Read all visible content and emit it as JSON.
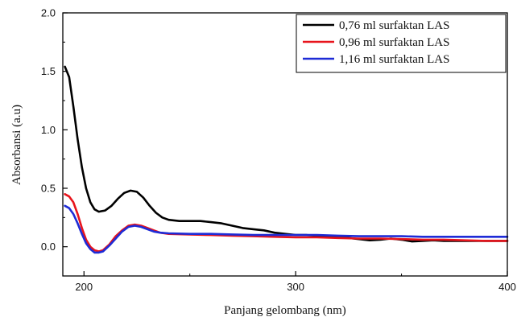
{
  "chart_data": {
    "type": "line",
    "xlabel": "Panjang gelombang (nm)",
    "ylabel": "Absorbansi (a.u)",
    "xlim": [
      190,
      400
    ],
    "ylim": [
      -0.25,
      2.0
    ],
    "x_ticks": [
      "200",
      "300",
      "400"
    ],
    "y_ticks": [
      "0.0",
      "0.5",
      "1.0",
      "1.5",
      "2.0"
    ],
    "grid": false,
    "legend_position": "top-right",
    "series": [
      {
        "name": "0,76 ml surfaktan LAS",
        "color": "#000000",
        "points": [
          [
            191,
            1.54
          ],
          [
            193,
            1.45
          ],
          [
            195,
            1.2
          ],
          [
            197,
            0.92
          ],
          [
            199,
            0.68
          ],
          [
            201,
            0.5
          ],
          [
            203,
            0.38
          ],
          [
            205,
            0.32
          ],
          [
            207,
            0.3
          ],
          [
            210,
            0.31
          ],
          [
            213,
            0.35
          ],
          [
            216,
            0.41
          ],
          [
            219,
            0.46
          ],
          [
            222,
            0.48
          ],
          [
            225,
            0.47
          ],
          [
            228,
            0.42
          ],
          [
            231,
            0.35
          ],
          [
            234,
            0.29
          ],
          [
            237,
            0.25
          ],
          [
            240,
            0.23
          ],
          [
            245,
            0.22
          ],
          [
            250,
            0.22
          ],
          [
            255,
            0.22
          ],
          [
            260,
            0.21
          ],
          [
            265,
            0.2
          ],
          [
            270,
            0.18
          ],
          [
            275,
            0.16
          ],
          [
            280,
            0.15
          ],
          [
            285,
            0.14
          ],
          [
            290,
            0.12
          ],
          [
            295,
            0.11
          ],
          [
            300,
            0.1
          ],
          [
            305,
            0.1
          ],
          [
            310,
            0.095
          ],
          [
            320,
            0.085
          ],
          [
            330,
            0.065
          ],
          [
            335,
            0.055
          ],
          [
            340,
            0.06
          ],
          [
            345,
            0.07
          ],
          [
            350,
            0.06
          ],
          [
            355,
            0.045
          ],
          [
            360,
            0.05
          ],
          [
            365,
            0.055
          ],
          [
            370,
            0.05
          ],
          [
            380,
            0.05
          ],
          [
            390,
            0.05
          ],
          [
            400,
            0.05
          ]
        ]
      },
      {
        "name": "0,96 ml surfaktan LAS",
        "color": "#e8141c",
        "points": [
          [
            191,
            0.45
          ],
          [
            193,
            0.43
          ],
          [
            195,
            0.38
          ],
          [
            197,
            0.28
          ],
          [
            199,
            0.16
          ],
          [
            201,
            0.06
          ],
          [
            203,
            0.0
          ],
          [
            205,
            -0.03
          ],
          [
            207,
            -0.04
          ],
          [
            209,
            -0.03
          ],
          [
            212,
            0.02
          ],
          [
            215,
            0.09
          ],
          [
            218,
            0.14
          ],
          [
            221,
            0.18
          ],
          [
            224,
            0.19
          ],
          [
            227,
            0.18
          ],
          [
            230,
            0.16
          ],
          [
            233,
            0.14
          ],
          [
            236,
            0.12
          ],
          [
            240,
            0.11
          ],
          [
            250,
            0.105
          ],
          [
            260,
            0.1
          ],
          [
            270,
            0.095
          ],
          [
            280,
            0.09
          ],
          [
            290,
            0.085
          ],
          [
            300,
            0.08
          ],
          [
            310,
            0.08
          ],
          [
            320,
            0.075
          ],
          [
            330,
            0.07
          ],
          [
            340,
            0.07
          ],
          [
            350,
            0.065
          ],
          [
            360,
            0.06
          ],
          [
            370,
            0.06
          ],
          [
            380,
            0.055
          ],
          [
            390,
            0.05
          ],
          [
            400,
            0.05
          ]
        ]
      },
      {
        "name": "1,16 ml surfaktan LAS",
        "color": "#1e2bd6",
        "points": [
          [
            191,
            0.35
          ],
          [
            193,
            0.33
          ],
          [
            195,
            0.28
          ],
          [
            197,
            0.2
          ],
          [
            199,
            0.11
          ],
          [
            201,
            0.03
          ],
          [
            203,
            -0.02
          ],
          [
            205,
            -0.05
          ],
          [
            207,
            -0.05
          ],
          [
            209,
            -0.04
          ],
          [
            212,
            0.01
          ],
          [
            215,
            0.07
          ],
          [
            218,
            0.13
          ],
          [
            221,
            0.17
          ],
          [
            224,
            0.18
          ],
          [
            227,
            0.17
          ],
          [
            230,
            0.15
          ],
          [
            233,
            0.13
          ],
          [
            236,
            0.12
          ],
          [
            240,
            0.115
          ],
          [
            250,
            0.11
          ],
          [
            260,
            0.11
          ],
          [
            270,
            0.105
          ],
          [
            280,
            0.1
          ],
          [
            290,
            0.1
          ],
          [
            300,
            0.1
          ],
          [
            310,
            0.1
          ],
          [
            320,
            0.095
          ],
          [
            330,
            0.09
          ],
          [
            340,
            0.09
          ],
          [
            350,
            0.09
          ],
          [
            360,
            0.085
          ],
          [
            370,
            0.085
          ],
          [
            380,
            0.085
          ],
          [
            390,
            0.085
          ],
          [
            400,
            0.085
          ]
        ]
      }
    ]
  }
}
